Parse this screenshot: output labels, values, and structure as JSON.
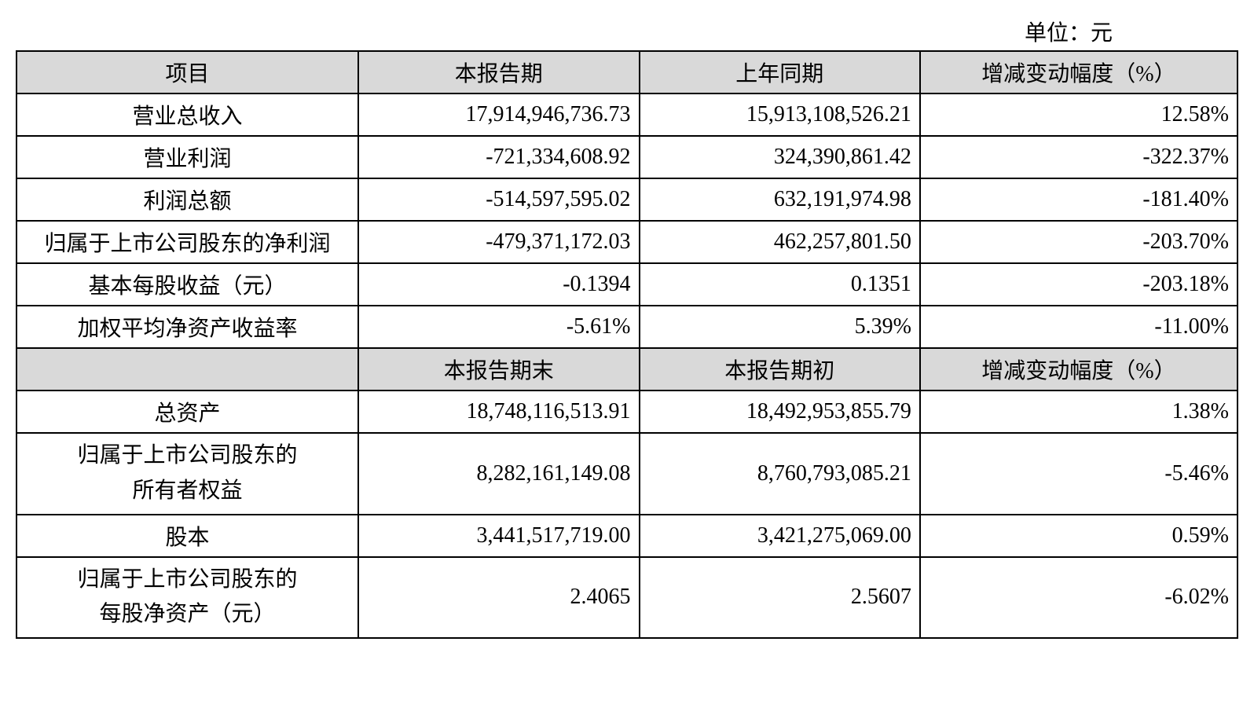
{
  "unit_label": "单位：元",
  "table": {
    "background_color": "#ffffff",
    "header_bg": "#d9d9d9",
    "border_color": "#000000",
    "text_color": "#000000",
    "font_size_pt": 21,
    "column_widths_pct": [
      28,
      23,
      23,
      26
    ],
    "columns_alignment": [
      "center",
      "right",
      "right",
      "right"
    ],
    "header1": {
      "item": "项目",
      "current": "本报告期",
      "prior": "上年同期",
      "change": "增减变动幅度（%）"
    },
    "section1_rows": [
      {
        "label": "营业总收入",
        "current": "17,914,946,736.73",
        "prior": "15,913,108,526.21",
        "change": "12.58%"
      },
      {
        "label": "营业利润",
        "current": "-721,334,608.92",
        "prior": "324,390,861.42",
        "change": "-322.37%"
      },
      {
        "label": "利润总额",
        "current": "-514,597,595.02",
        "prior": "632,191,974.98",
        "change": "-181.40%"
      },
      {
        "label": "归属于上市公司股东的净利润",
        "current": "-479,371,172.03",
        "prior": "462,257,801.50",
        "change": "-203.70%"
      },
      {
        "label": "基本每股收益（元）",
        "current": "-0.1394",
        "prior": "0.1351",
        "change": "-203.18%"
      },
      {
        "label": "加权平均净资产收益率",
        "current": "-5.61%",
        "prior": "5.39%",
        "change": "-11.00%"
      }
    ],
    "header2": {
      "item": "",
      "current": "本报告期末",
      "prior": "本报告期初",
      "change": "增减变动幅度（%）"
    },
    "section2_rows": [
      {
        "label": "总资产",
        "current": "18,748,116,513.91",
        "prior": "18,492,953,855.79",
        "change": "1.38%",
        "two_line": false
      },
      {
        "label_line1": "归属于上市公司股东的",
        "label_line2": "所有者权益",
        "current": "8,282,161,149.08",
        "prior": "8,760,793,085.21",
        "change": "-5.46%",
        "two_line": true
      },
      {
        "label": "股本",
        "current": "3,441,517,719.00",
        "prior": "3,421,275,069.00",
        "change": "0.59%",
        "two_line": false
      },
      {
        "label_line1": "归属于上市公司股东的",
        "label_line2": "每股净资产（元）",
        "current": "2.4065",
        "prior": "2.5607",
        "change": "-6.02%",
        "two_line": true
      }
    ]
  }
}
